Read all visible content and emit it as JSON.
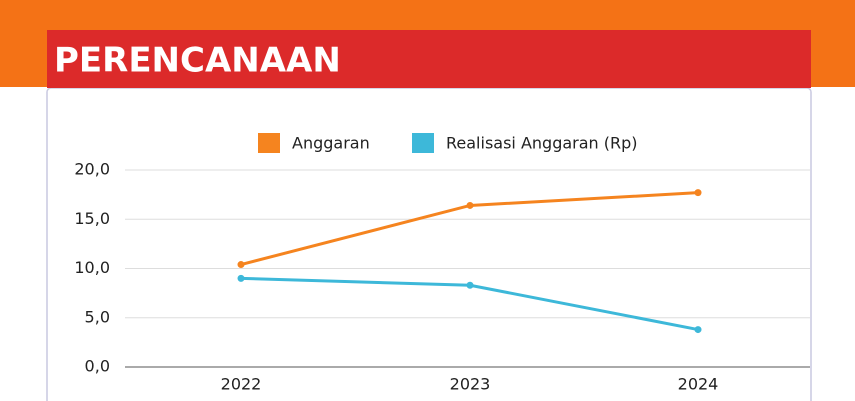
{
  "header": {
    "title": "PERENCANAAN"
  },
  "chart_data": {
    "type": "line",
    "categories": [
      "2022",
      "2023",
      "2024"
    ],
    "series": [
      {
        "name": "Anggaran",
        "color": "#f5841f",
        "values": [
          10.4,
          16.4,
          17.7
        ]
      },
      {
        "name": "Realisasi Anggaran (Rp)",
        "color": "#3db8d9",
        "values": [
          9.0,
          8.3,
          3.8
        ]
      }
    ],
    "ylim": [
      0,
      20
    ],
    "yticks": [
      {
        "value": 0,
        "label": "0,0"
      },
      {
        "value": 5,
        "label": "5,0"
      },
      {
        "value": 10,
        "label": "10,0"
      },
      {
        "value": 15,
        "label": "15,0"
      },
      {
        "value": 20,
        "label": "20,0"
      }
    ],
    "grid": true,
    "legend": "top"
  }
}
